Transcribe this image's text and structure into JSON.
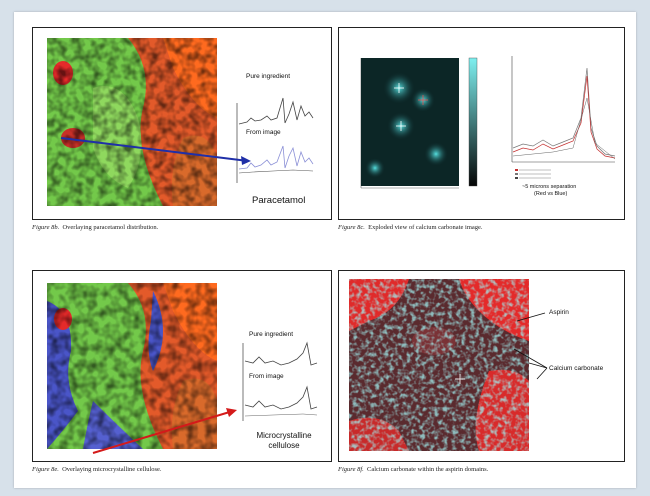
{
  "figures": [
    {
      "id": "8b",
      "fig_label": "Figure 8b.",
      "caption": "Overlaying paracetamol distribution.",
      "spectrum_top": "Pure ingredient",
      "spectrum_bottom": "From image",
      "compound": "Paracetamol"
    },
    {
      "id": "8c",
      "fig_label": "Figure 8c.",
      "caption": "Exploded view of calcium carbonate image.",
      "note_line1": "~5 microns separation",
      "note_line2": "(Red vs Blue)"
    },
    {
      "id": "8e",
      "fig_label": "Figure 8e.",
      "caption": "Overlaying microcrystalline cellulose.",
      "spectrum_top": "Pure ingredient",
      "spectrum_bottom": "From image",
      "compound_line1": "Microcrystalline",
      "compound_line2": "cellulose"
    },
    {
      "id": "8f",
      "fig_label": "Figure 8f.",
      "caption": "Calcium carbonate within the aspirin domains.",
      "label_a": "Aspirin",
      "label_b": "Calcium carbonate"
    }
  ],
  "colors": {
    "background": "#d7e1ea",
    "arrow_blue": "#1f2fa8",
    "arrow_red": "#d41a1a",
    "green": "#6fd24a",
    "red": "#d93a2a",
    "cyan": "#39c7c9"
  }
}
